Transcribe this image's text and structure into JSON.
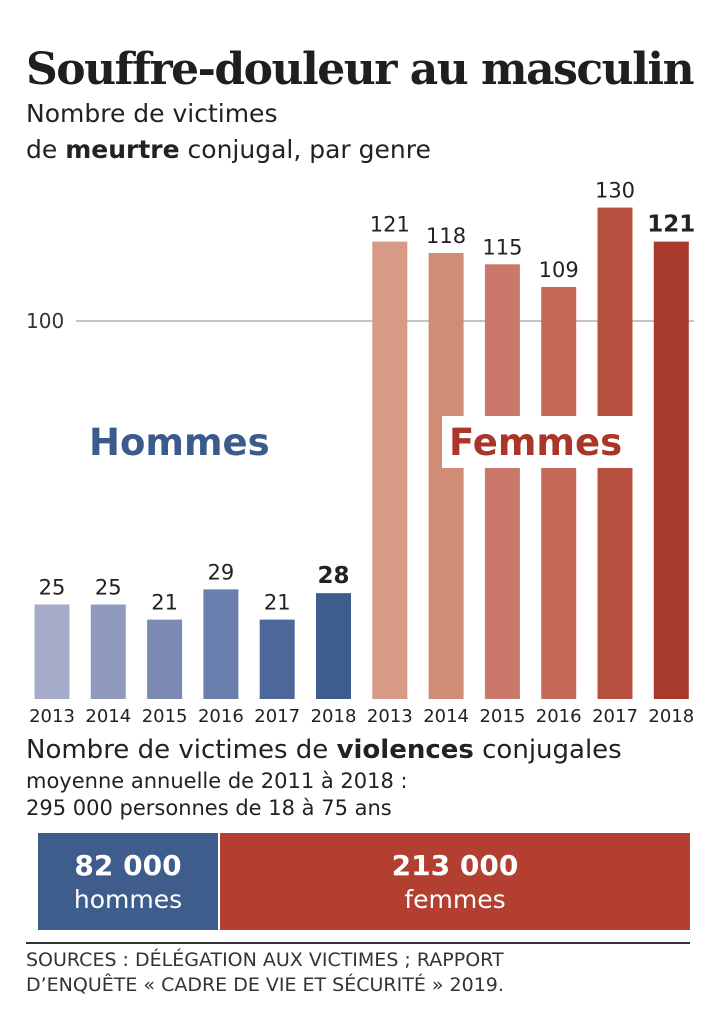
{
  "header": {
    "title": "Souffre-douleur au masculin",
    "subtitle_line1": "Nombre de victimes",
    "subtitle_line2_pre": "de ",
    "subtitle_line2_bold": "meurtre",
    "subtitle_line2_post": " conjugal, par genre"
  },
  "chart_data": {
    "type": "bar",
    "title": "Souffre-douleur au masculin",
    "ylabel": "",
    "xlabel": "",
    "ylim": [
      0,
      130
    ],
    "reference_line": {
      "value": 100,
      "label": "100"
    },
    "grid": false,
    "categories": [
      "2013",
      "2014",
      "2015",
      "2016",
      "2017",
      "2018"
    ],
    "series": [
      {
        "name": "Hommes",
        "values": [
          25,
          25,
          21,
          29,
          21,
          28
        ],
        "colors": [
          "#a5abc8",
          "#8f9abe",
          "#7b8ab3",
          "#6b7fae",
          "#4c6798",
          "#3f5d8c"
        ],
        "label_color": "#3b5b8c",
        "emphasize_last": true
      },
      {
        "name": "Femmes",
        "values": [
          121,
          118,
          115,
          109,
          130,
          121
        ],
        "colors": [
          "#d69a85",
          "#cf8c77",
          "#c9786a",
          "#c56a59",
          "#b8503f",
          "#a73a2b"
        ],
        "label_color": "#a93629",
        "emphasize_last": true
      }
    ]
  },
  "stats": {
    "heading_pre": "Nombre de victimes de ",
    "heading_bold": "violences",
    "heading_post": " conjugales",
    "line2": "moyenne annuelle de 2011 à 2018 :",
    "line3": "295 000 personnes de 18 à 75 ans",
    "men_value": "82 000",
    "men_label": "hommes",
    "women_value": "213 000",
    "women_label": "femmes",
    "men_color": "#3f5d8c",
    "women_color": "#b23f2f"
  },
  "sources": {
    "line1": "SOURCES : DÉLÉGATION AUX VICTIMES ; RAPPORT",
    "line2": "D’ENQUÊTE « CADRE DE VIE ET SÉCURITÉ » 2019."
  }
}
